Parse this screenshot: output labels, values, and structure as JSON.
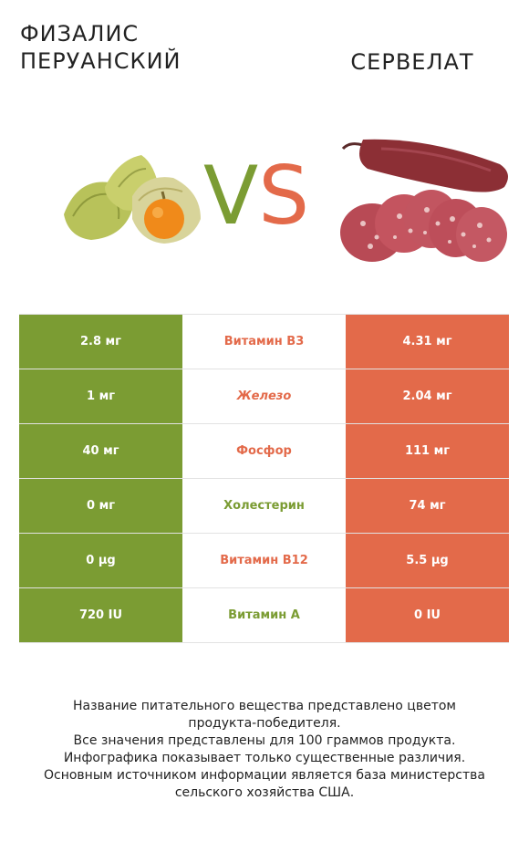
{
  "header": {
    "left_title": "ФИЗАЛИС ПЕРУАНСКИЙ",
    "right_title": "СЕРВЕЛАТ",
    "vs_v": "V",
    "vs_s": "S"
  },
  "colors": {
    "left": "#7b9c33",
    "right": "#e36a4a"
  },
  "rows": [
    {
      "left": "2.8 мг",
      "nutrient": "Витамин B3",
      "right": "4.31 мг",
      "winner": "right"
    },
    {
      "left": "1 мг",
      "nutrient": "Железо",
      "right": "2.04 мг",
      "winner": "right"
    },
    {
      "left": "40 мг",
      "nutrient": "Фосфор",
      "right": "111 мг",
      "winner": "right"
    },
    {
      "left": "0 мг",
      "nutrient": "Холестерин",
      "right": "74 мг",
      "winner": "left"
    },
    {
      "left": "0 µg",
      "nutrient": "Витамин B12",
      "right": "5.5 µg",
      "winner": "right"
    },
    {
      "left": "720 IU",
      "nutrient": "Витамин A",
      "right": "0 IU",
      "winner": "left"
    }
  ],
  "footnote": {
    "line1": "Название питательного вещества представлено цветом",
    "line2": "продукта-победителя.",
    "line3": "Все значения представлены для 100 граммов продукта.",
    "line4": "Инфографика показывает только существенные различия.",
    "line5": "Основным источником информации является база министерства",
    "line6": "сельского хозяйства США."
  }
}
